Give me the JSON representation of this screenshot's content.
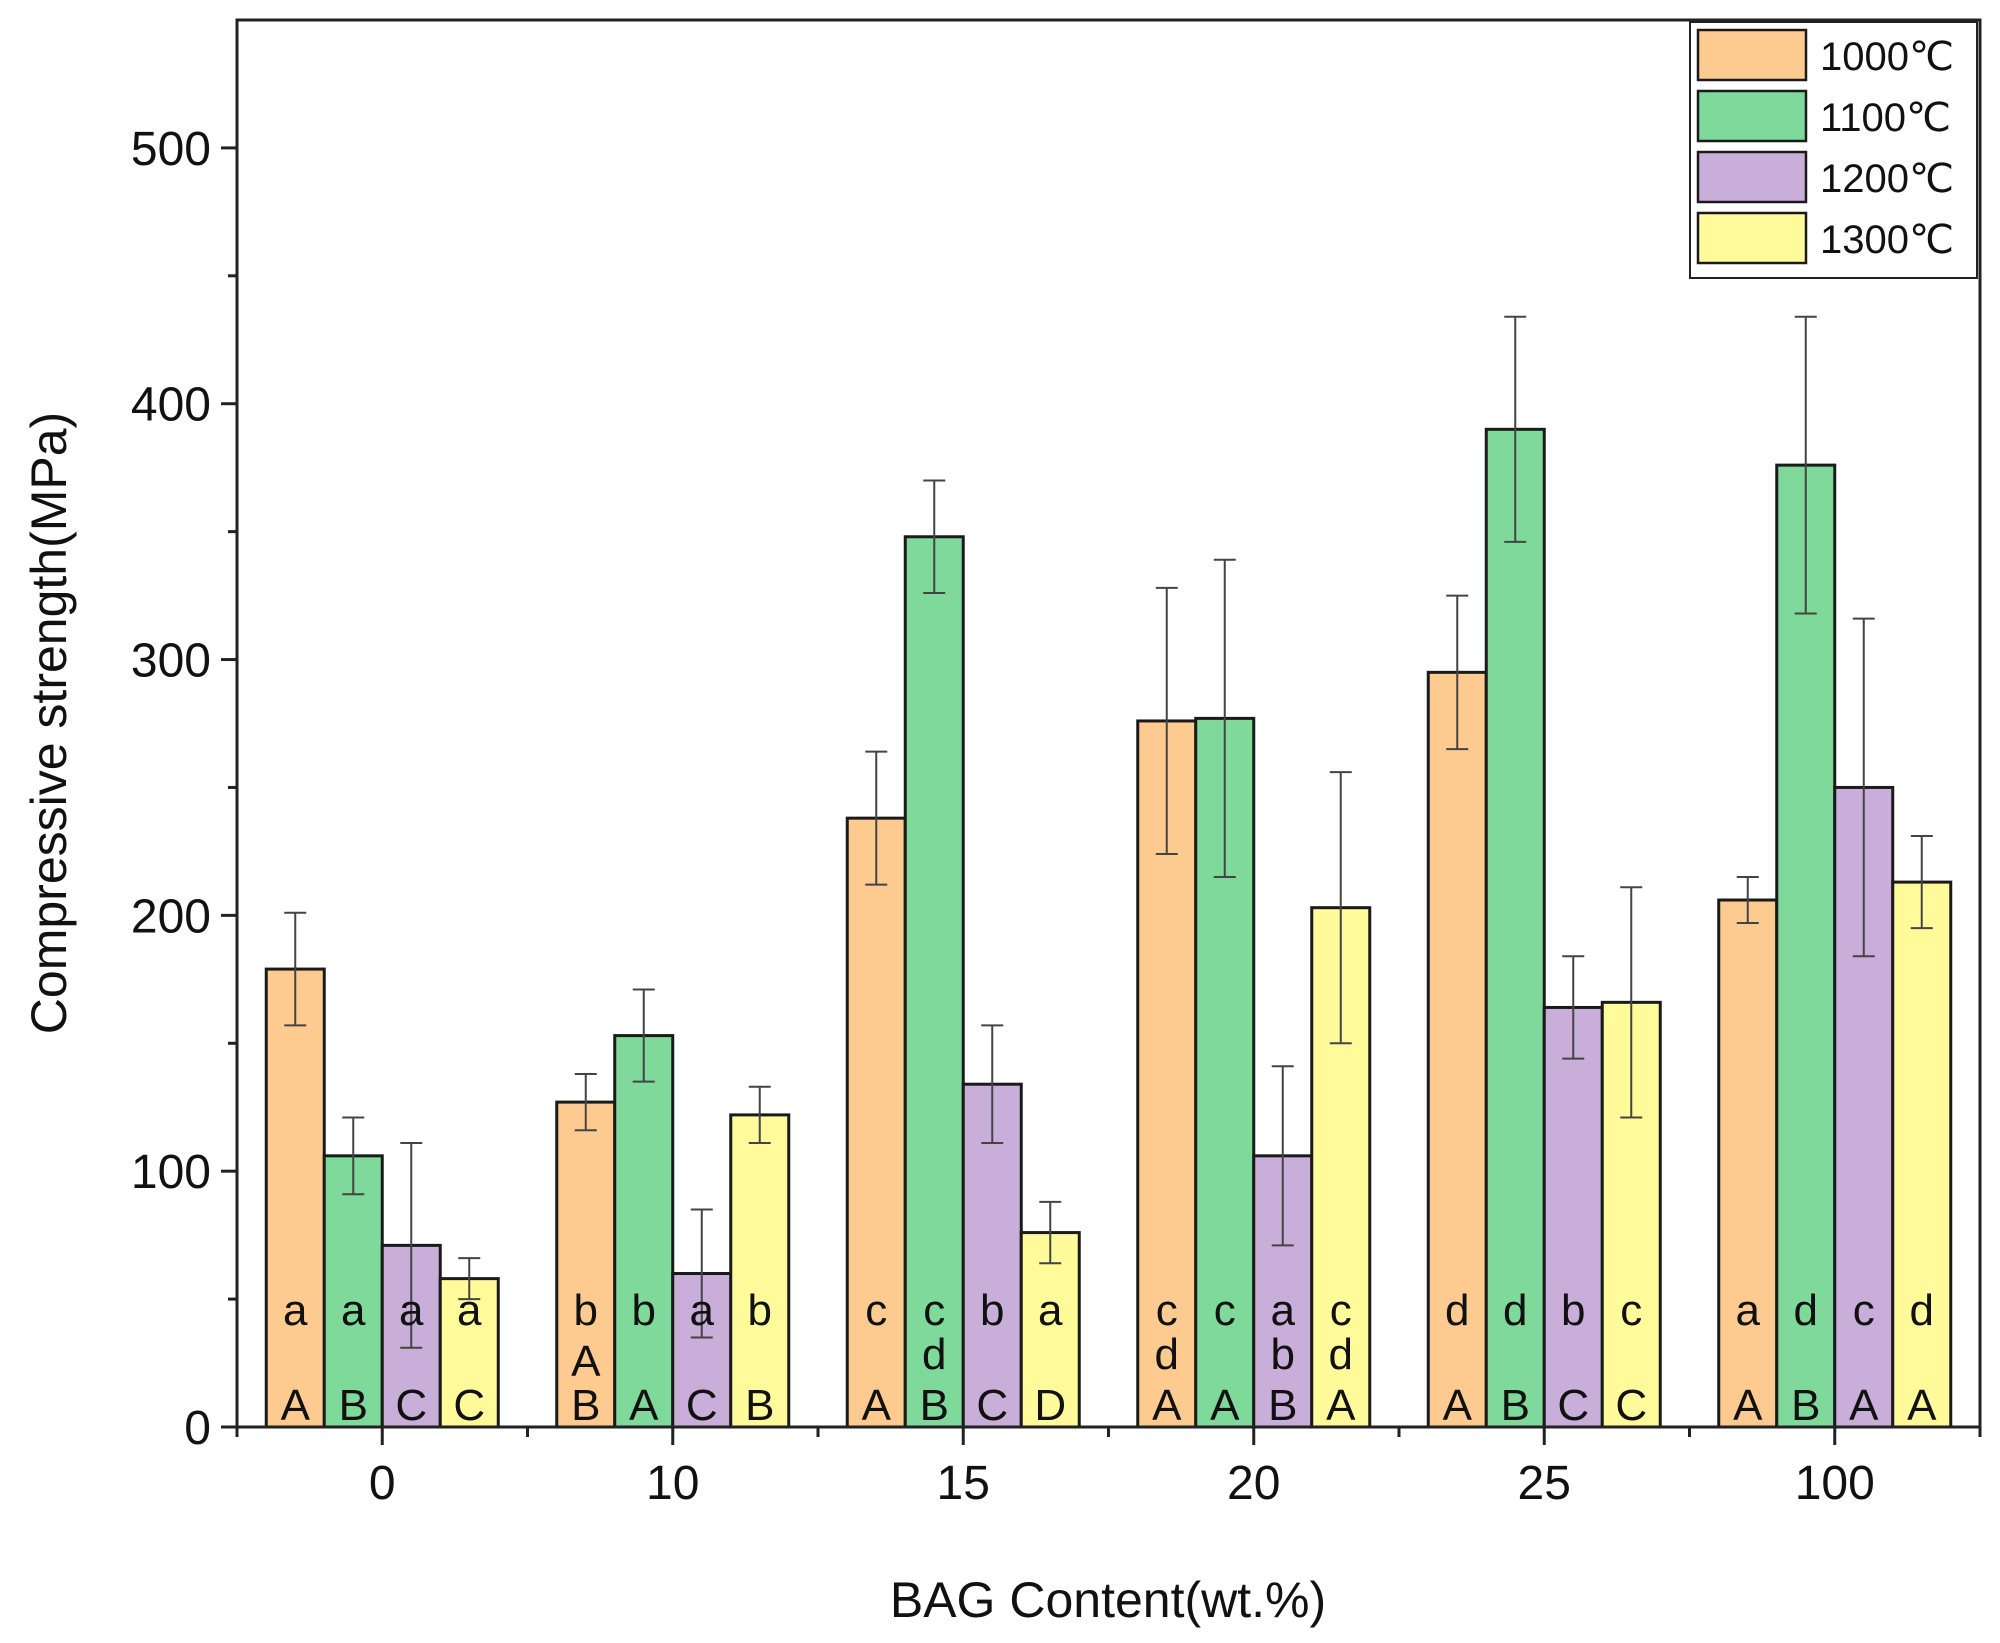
{
  "chart_data": {
    "type": "bar",
    "title": "",
    "xlabel": "BAG Content(wt.%)",
    "ylabel": "Compressive strength(MPa)",
    "ylim": [
      0,
      550
    ],
    "yticks": [
      0,
      100,
      200,
      300,
      400,
      500
    ],
    "grid": false,
    "legend_position": "top-right",
    "categories": [
      "0",
      "10",
      "15",
      "20",
      "25",
      "100"
    ],
    "series": [
      {
        "name": "1000℃",
        "color": "#FDCB8F",
        "values": [
          179,
          127,
          238,
          276,
          295,
          206
        ],
        "errors": [
          22,
          11,
          26,
          52,
          30,
          9
        ],
        "lower_letters": [
          "a",
          "b",
          "c",
          "c d",
          "d",
          "a"
        ],
        "upper_letters": [
          "A",
          "A B",
          "A",
          "A",
          "A",
          "A"
        ]
      },
      {
        "name": "1100℃",
        "color": "#7FD99A",
        "values": [
          106,
          153,
          348,
          277,
          390,
          376
        ],
        "errors": [
          15,
          18,
          22,
          62,
          44,
          58
        ],
        "lower_letters": [
          "a",
          "b",
          "c d",
          "c",
          "d",
          "d"
        ],
        "upper_letters": [
          "B",
          "A",
          "B",
          "A",
          "B",
          "B"
        ]
      },
      {
        "name": "1200℃",
        "color": "#C8AED8",
        "values": [
          71,
          60,
          134,
          106,
          164,
          250
        ],
        "errors": [
          40,
          25,
          23,
          35,
          20,
          66
        ],
        "lower_letters": [
          "a",
          "a",
          "b",
          "a b",
          "b",
          "c"
        ],
        "upper_letters": [
          "C",
          "C",
          "C",
          "B",
          "C",
          "A"
        ]
      },
      {
        "name": "1300℃",
        "color": "#FFFB9B",
        "values": [
          58,
          122,
          76,
          203,
          166,
          213
        ],
        "errors": [
          8,
          11,
          12,
          53,
          45,
          18
        ],
        "lower_letters": [
          "a",
          "b",
          "a",
          "c d",
          "c",
          "d"
        ],
        "upper_letters": [
          "C",
          "B",
          "D",
          "A",
          "C",
          "A"
        ]
      }
    ]
  }
}
